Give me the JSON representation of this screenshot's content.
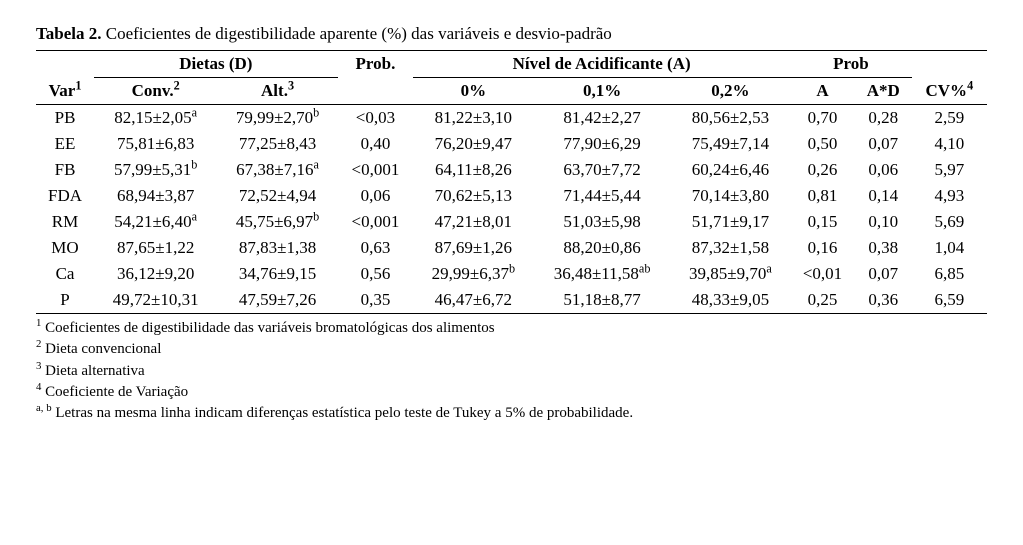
{
  "title_bold": "Tabela 2.",
  "title_rest": " Coeficientes de digestibilidade aparente (%) das variáveis e desvio-padrão",
  "headers": {
    "dietas": "Dietas (D)",
    "prob1": "Prob.",
    "acid": "Nível de Acidificante (A)",
    "prob2": "Prob",
    "var": "Var",
    "var_sup": "1",
    "conv": "Conv.",
    "conv_sup": "2",
    "alt": "Alt.",
    "alt_sup": "3",
    "a0": "0%",
    "a1": "0,1%",
    "a2": "0,2%",
    "A": "A",
    "AD": "A*D",
    "cv": "CV%",
    "cv_sup": "4"
  },
  "rows": [
    {
      "var": "PB",
      "conv": "82,15±2,05",
      "conv_sup": "a",
      "alt": "79,99±2,70",
      "alt_sup": "b",
      "p1": "<0,03",
      "a0": "81,22±3,10",
      "a0_sup": "",
      "a1": "81,42±2,27",
      "a1_sup": "",
      "a2": "80,56±2,53",
      "a2_sup": "",
      "A": "0,70",
      "AD": "0,28",
      "cv": "2,59"
    },
    {
      "var": "EE",
      "conv": "75,81±6,83",
      "conv_sup": "",
      "alt": "77,25±8,43",
      "alt_sup": "",
      "p1": "0,40",
      "a0": "76,20±9,47",
      "a0_sup": "",
      "a1": "77,90±6,29",
      "a1_sup": "",
      "a2": "75,49±7,14",
      "a2_sup": "",
      "A": "0,50",
      "AD": "0,07",
      "cv": "4,10"
    },
    {
      "var": "FB",
      "conv": "57,99±5,31",
      "conv_sup": "b",
      "alt": "67,38±7,16",
      "alt_sup": "a",
      "p1": "<0,001",
      "a0": "64,11±8,26",
      "a0_sup": "",
      "a1": "63,70±7,72",
      "a1_sup": "",
      "a2": "60,24±6,46",
      "a2_sup": "",
      "A": "0,26",
      "AD": "0,06",
      "cv": "5,97"
    },
    {
      "var": "FDA",
      "conv": "68,94±3,87",
      "conv_sup": "",
      "alt": "72,52±4,94",
      "alt_sup": "",
      "p1": "0,06",
      "a0": "70,62±5,13",
      "a0_sup": "",
      "a1": "71,44±5,44",
      "a1_sup": "",
      "a2": "70,14±3,80",
      "a2_sup": "",
      "A": "0,81",
      "AD": "0,14",
      "cv": "4,93"
    },
    {
      "var": "RM",
      "conv": "54,21±6,40",
      "conv_sup": "a",
      "alt": "45,75±6,97",
      "alt_sup": "b",
      "p1": "<0,001",
      "a0": "47,21±8,01",
      "a0_sup": "",
      "a1": "51,03±5,98",
      "a1_sup": "",
      "a2": "51,71±9,17",
      "a2_sup": "",
      "A": "0,15",
      "AD": "0,10",
      "cv": "5,69"
    },
    {
      "var": "MO",
      "conv": "87,65±1,22",
      "conv_sup": "",
      "alt": "87,83±1,38",
      "alt_sup": "",
      "p1": "0,63",
      "a0": "87,69±1,26",
      "a0_sup": "",
      "a1": "88,20±0,86",
      "a1_sup": "",
      "a2": "87,32±1,58",
      "a2_sup": "",
      "A": "0,16",
      "AD": "0,38",
      "cv": "1,04"
    },
    {
      "var": "Ca",
      "conv": "36,12±9,20",
      "conv_sup": "",
      "alt": "34,76±9,15",
      "alt_sup": "",
      "p1": "0,56",
      "a0": "29,99±6,37",
      "a0_sup": "b",
      "a1": "36,48±11,58",
      "a1_sup": "ab",
      "a2": "39,85±9,70",
      "a2_sup": "a",
      "A": "<0,01",
      "AD": "0,07",
      "cv": "6,85"
    },
    {
      "var": "P",
      "conv": "49,72±10,31",
      "conv_sup": "",
      "alt": "47,59±7,26",
      "alt_sup": "",
      "p1": "0,35",
      "a0": "46,47±6,72",
      "a0_sup": "",
      "a1": "51,18±8,77",
      "a1_sup": "",
      "a2": "48,33±9,05",
      "a2_sup": "",
      "A": "0,25",
      "AD": "0,36",
      "cv": "6,59"
    }
  ],
  "footnotes": {
    "f1_sup": "1",
    "f1": " Coeficientes de digestibilidade das variáveis bromatológicas dos alimentos",
    "f2_sup": "2",
    "f2": " Dieta convencional",
    "f3_sup": "3",
    "f3": " Dieta alternativa",
    "f4_sup": "4",
    "f4": " Coeficiente de Variação",
    "f5_sup": "a, b",
    "f5": " Letras na mesma linha indicam diferenças estatística pelo teste de Tukey a 5% de probabilidade."
  }
}
